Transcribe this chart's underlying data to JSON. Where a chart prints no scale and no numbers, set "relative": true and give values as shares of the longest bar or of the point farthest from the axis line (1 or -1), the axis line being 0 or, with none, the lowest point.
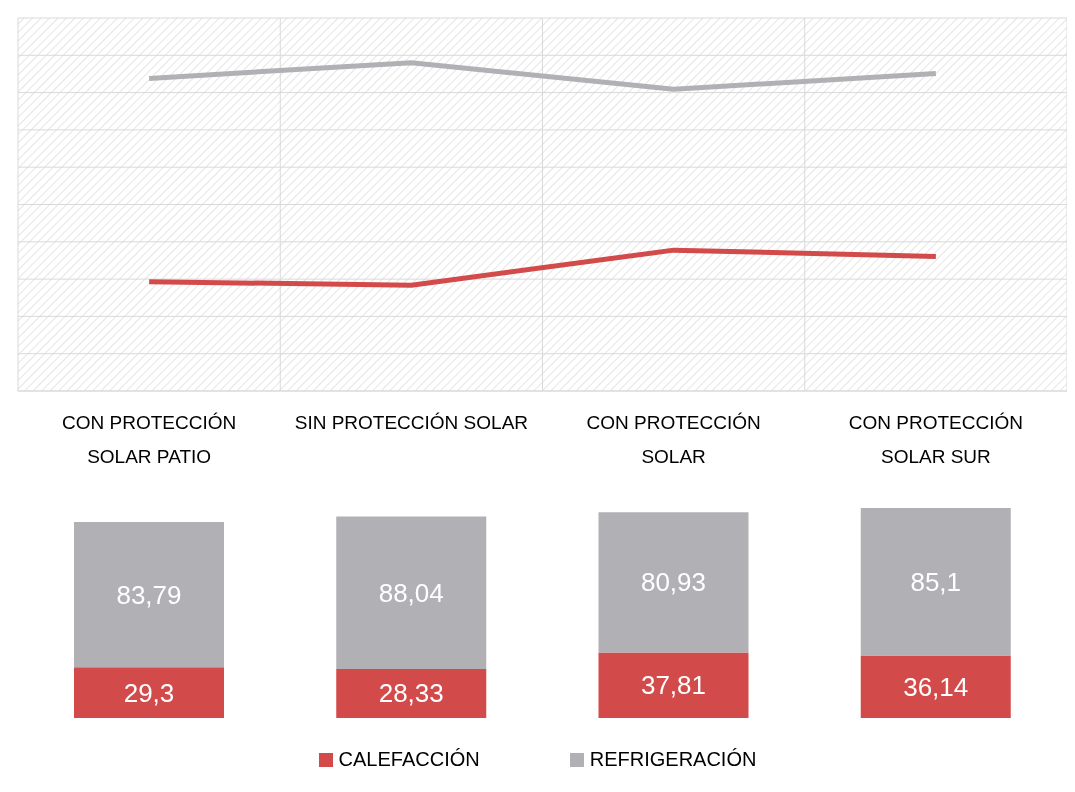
{
  "chart_data": [
    {
      "type": "line",
      "categories": [
        "CON PROTECCIÓN SOLAR PATIO",
        "SIN PROTECCIÓN SOLAR",
        "CON PROTECCIÓN SOLAR",
        "CON PROTECCIÓN SOLAR SUR"
      ],
      "series": [
        {
          "color": "#d34a4a",
          "values": [
            0.333,
            0.322,
            0.429,
            0.41
          ]
        },
        {
          "color": "#b1b0b5",
          "values": [
            0.952,
            1,
            0.919,
            0.967
          ]
        }
      ],
      "relative": true,
      "grid": true,
      "marker": "none"
    },
    {
      "type": "bar",
      "stacked": true,
      "categories": [
        null,
        null,
        null,
        null
      ],
      "series": [
        {
          "name": "CALEFACCIÓN",
          "color": "#d34a4a",
          "values": [
            29.3,
            28.33,
            37.81,
            36.14
          ],
          "value_labels": [
            "29,3",
            "28,33",
            "37,81",
            "36,14"
          ]
        },
        {
          "name": "REFRIGERACIÓN",
          "color": "#b1b0b5",
          "values": [
            83.79,
            88.04,
            80.93,
            85.1
          ],
          "value_labels": [
            "83,79",
            "88,04",
            "80,93",
            "85,1"
          ]
        }
      ],
      "legend": "bottom"
    }
  ]
}
